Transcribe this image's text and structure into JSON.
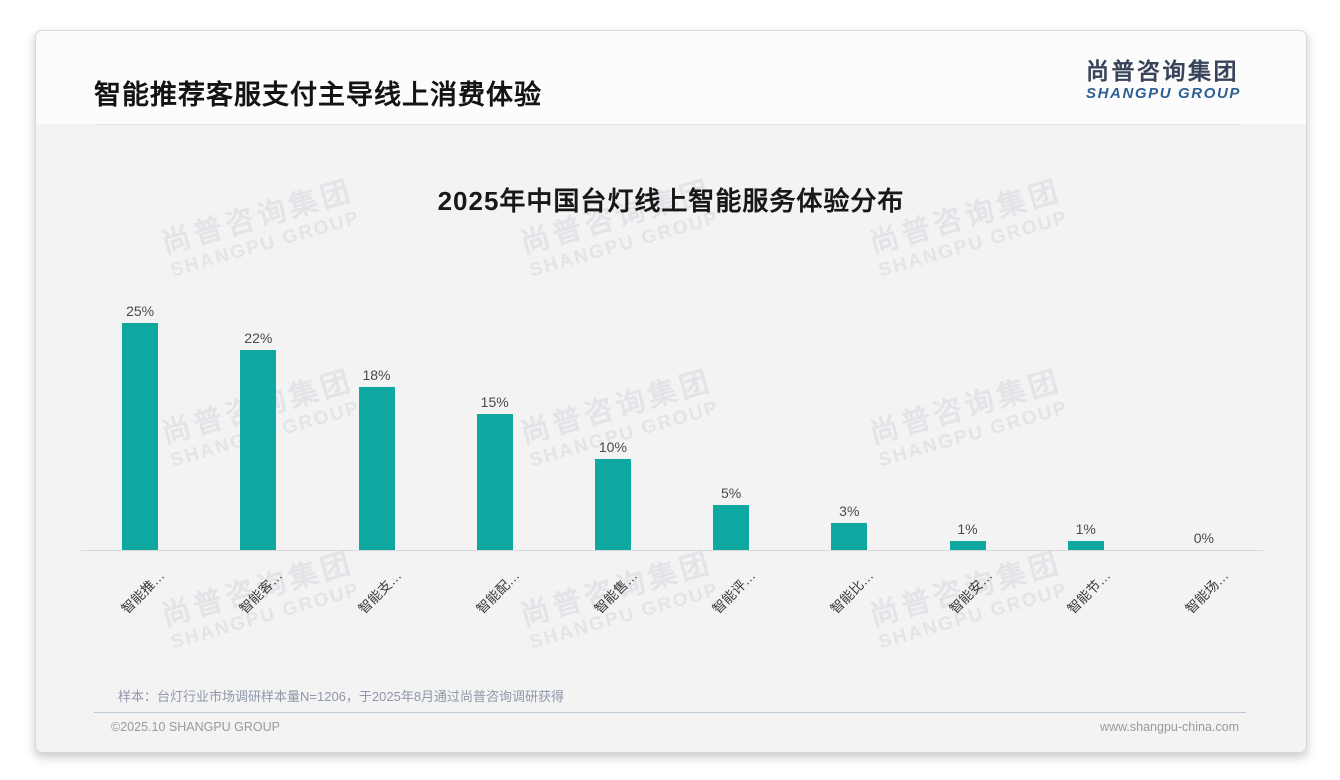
{
  "accent_color": "#0fa8a1",
  "header": {
    "title": "智能推荐客服支付主导线上消费体验",
    "logo": {
      "cn": "尚普咨询集团",
      "en": "SHANGPU GROUP"
    }
  },
  "watermark": {
    "cn": "尚普咨询集团",
    "en": "SHANGPU GROUP"
  },
  "chart_data": {
    "type": "bar",
    "title": "2025年中国台灯线上智能服务体验分布",
    "categories": [
      "智能推…",
      "智能客…",
      "智能支…",
      "智能配…",
      "智能售…",
      "智能评…",
      "智能比…",
      "智能安…",
      "智能节…",
      "智能场…"
    ],
    "values": [
      25,
      22,
      18,
      15,
      10,
      5,
      3,
      1,
      1,
      0
    ],
    "value_labels": [
      "25%",
      "22%",
      "18%",
      "15%",
      "10%",
      "5%",
      "3%",
      "1%",
      "1%",
      "0%"
    ],
    "unit": "%",
    "ylim": [
      0,
      25
    ],
    "bar_color": "#0fa8a1",
    "grid": false,
    "legend": null,
    "xlabel": "",
    "ylabel": ""
  },
  "note": "样本：台灯行业市场调研样本量N=1206，于2025年8月通过尚普咨询调研获得",
  "footer": {
    "copyright": "©2025.10 SHANGPU GROUP",
    "website": "www.shangpu-china.com"
  }
}
